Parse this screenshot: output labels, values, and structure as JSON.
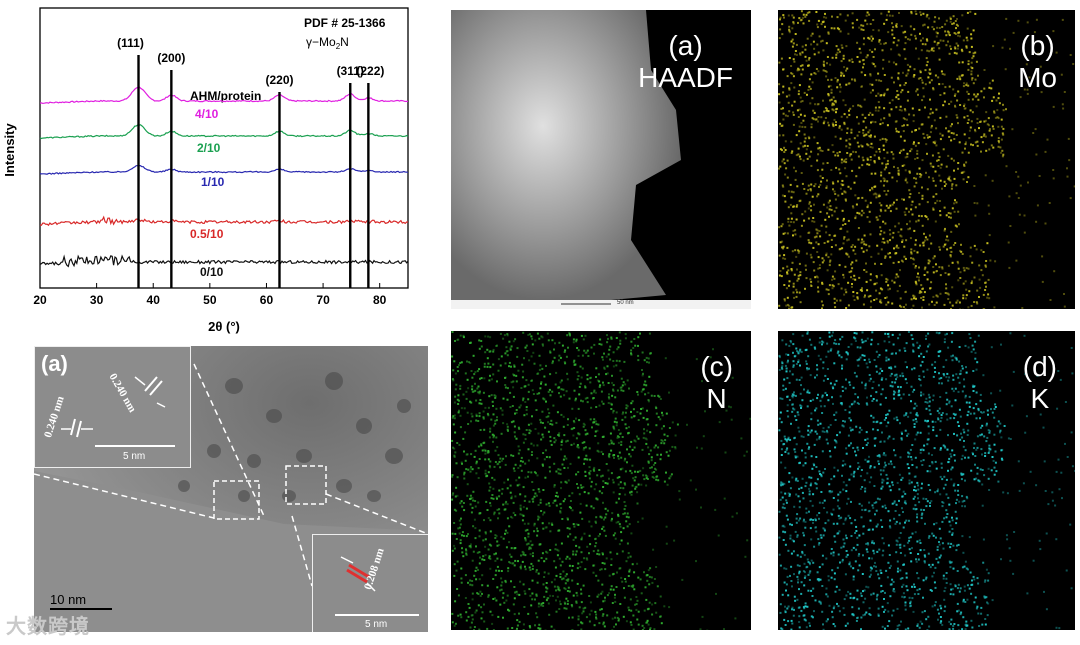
{
  "xrd": {
    "ylabel": "Intensity",
    "xlabel": "2θ (°)",
    "pdf": "PDF # 25-1366",
    "phase_main": "γ−Mo",
    "phase_sub": "2",
    "phase_end": "N",
    "legend_title": "AHM/protein",
    "x_ticks": [
      "20",
      "30",
      "40",
      "50",
      "60",
      "70",
      "80"
    ],
    "peaks": [
      {
        "label": "(111)",
        "x": 37.4
      },
      {
        "label": "(200)",
        "x": 43.2
      },
      {
        "label": "(220)",
        "x": 62.3
      },
      {
        "label": "(311)",
        "x": 74.8
      },
      {
        "label": "(222)",
        "x": 78.0
      }
    ],
    "series": [
      {
        "name": "4/10",
        "color": "#e020e0"
      },
      {
        "name": "2/10",
        "color": "#1aa050"
      },
      {
        "name": "1/10",
        "color": "#2828b0"
      },
      {
        "name": "0.5/10",
        "color": "#d82828"
      },
      {
        "name": "0/10",
        "color": "#101010"
      }
    ]
  },
  "tem": {
    "label": "(a)",
    "scale": "10 nm",
    "inset_tl": {
      "d1": "0.240 nm",
      "d2": "0.240 nm",
      "scale": "5 nm"
    },
    "inset_br": {
      "d": "0.208 nm",
      "scale": "5 nm"
    }
  },
  "maps": [
    {
      "id": "haadf",
      "panel": "(a)",
      "element": "HAADF",
      "scale": "50 nm",
      "color": "#bdbdbd"
    },
    {
      "id": "mo",
      "panel": "(b)",
      "element": "Mo",
      "color": "#c8c020"
    },
    {
      "id": "n",
      "panel": "(c)",
      "element": "N",
      "color": "#30b030"
    },
    {
      "id": "k",
      "panel": "(d)",
      "element": "K",
      "color": "#20c8c8"
    }
  ],
  "watermark": "大数跨境"
}
